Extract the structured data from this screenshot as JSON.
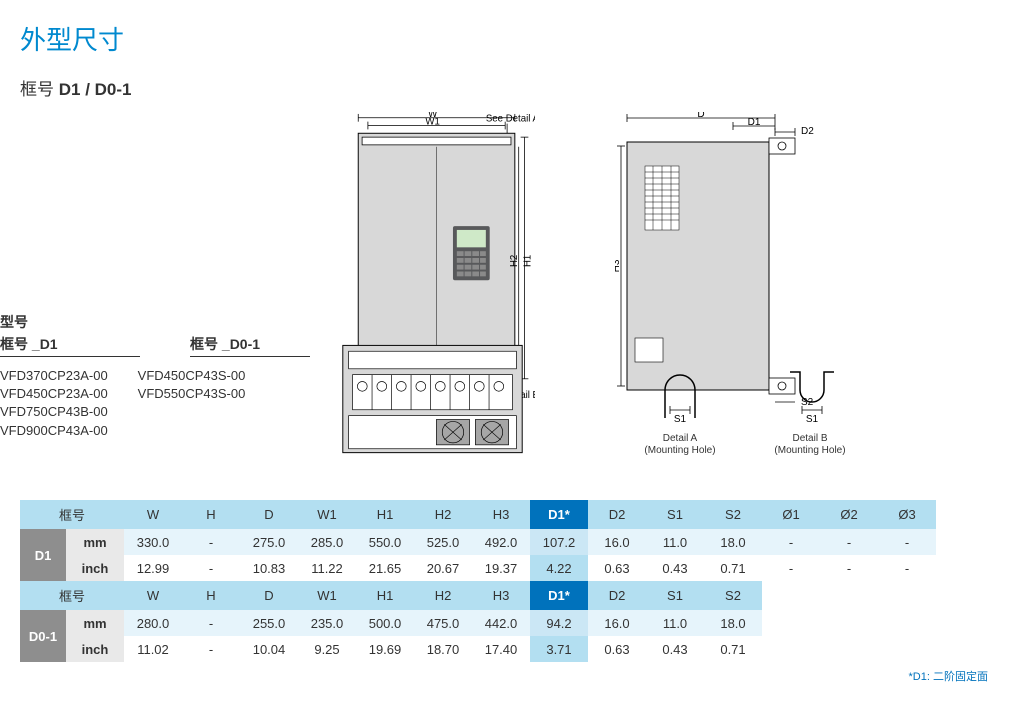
{
  "title": "外型尺寸",
  "subtitle_prefix": "框号 ",
  "subtitle_bold": "D1 / D0-1",
  "diagram_labels": {
    "W": "W",
    "W1": "W1",
    "H1": "H1",
    "H2": "H2",
    "H3": "H3",
    "D": "D",
    "D1": "D1",
    "D2": "D2",
    "S1": "S1",
    "S2": "S2",
    "see_detail_a": "See Detail A",
    "see_detail_b": "See Detail B",
    "detail_a": "Detail A",
    "detail_b": "Detail B",
    "mounting_hole": "(Mounting Hole)"
  },
  "models": {
    "section_label": "型号",
    "frame_prefix": "框号 _",
    "col1_label": "D1",
    "col2_label": "D0-1",
    "col1": [
      "VFD370CP23A-00",
      "VFD450CP23A-00",
      "VFD750CP43B-00",
      "VFD900CP43A-00"
    ],
    "col2": [
      "VFD450CP43S-00",
      "VFD550CP43S-00"
    ]
  },
  "tables": {
    "frame_label": "框号",
    "highlight_col": "D1*",
    "header_main": [
      "W",
      "H",
      "D",
      "W1",
      "H1",
      "H2",
      "H3",
      "D1*",
      "D2",
      "S1",
      "S2",
      "Ø1",
      "Ø2",
      "Ø3"
    ],
    "header_short": [
      "W",
      "H",
      "D",
      "W1",
      "H1",
      "H2",
      "H3",
      "D1*",
      "D2",
      "S1",
      "S2"
    ],
    "t1": {
      "name": "D1",
      "units": [
        "mm",
        "inch"
      ],
      "rows": [
        [
          "330.0",
          "-",
          "275.0",
          "285.0",
          "550.0",
          "525.0",
          "492.0",
          "107.2",
          "16.0",
          "11.0",
          "18.0",
          "-",
          "-",
          "-"
        ],
        [
          "12.99",
          "-",
          "10.83",
          "11.22",
          "21.65",
          "20.67",
          "19.37",
          "4.22",
          "0.63",
          "0.43",
          "0.71",
          "-",
          "-",
          "-"
        ]
      ],
      "colors": {
        "bg_a": "#e6f4fb",
        "bg_b": "#ffffff",
        "hdr_bg": "#b3dff1",
        "hl_hdr_bg": "#0072bc",
        "hl_hdr_color": "#ffffff",
        "rowhead_bg": "#8e8e8e",
        "rowhead_color": "#ffffff",
        "unit_bg": "#e9e9e9"
      }
    },
    "t2": {
      "name": "D0-1",
      "units": [
        "mm",
        "inch"
      ],
      "rows": [
        [
          "280.0",
          "-",
          "255.0",
          "235.0",
          "500.0",
          "475.0",
          "442.0",
          "94.2",
          "16.0",
          "11.0",
          "18.0"
        ],
        [
          "11.02",
          "-",
          "10.04",
          "9.25",
          "19.69",
          "18.70",
          "17.40",
          "3.71",
          "0.63",
          "0.43",
          "0.71"
        ]
      ]
    }
  },
  "footnote": "*D1: 二阶固定面",
  "colors": {
    "title": "#0089cf",
    "accent": "#0072bc",
    "band": "#b3dff1",
    "grey_fill": "#d8d8d8",
    "line": "#000000"
  },
  "fontsizes": {
    "title": 26,
    "subtitle": 17,
    "table": 13,
    "label": 10
  }
}
